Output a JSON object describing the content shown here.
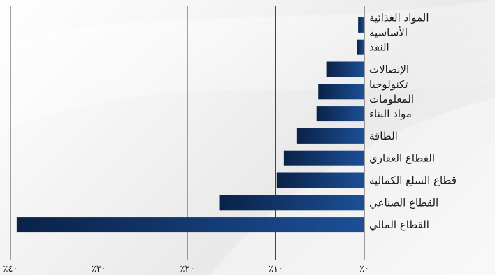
{
  "chart_data": {
    "type": "bar",
    "orientation": "horizontal",
    "categories": [
      [
        "المواد الغذائية",
        "الأساسية"
      ],
      [
        "النقد"
      ],
      [
        "الإتصالات"
      ],
      [
        "تكنولوجيا",
        "المعلومات"
      ],
      [
        "مواد البناء"
      ],
      [
        "الطاقة"
      ],
      [
        "القطاع العقاري"
      ],
      [
        "قطاع السلع الكمالية"
      ],
      [
        "القطاع الصناعي"
      ],
      [
        "القطاع المالي"
      ]
    ],
    "values": [
      0.7,
      0.8,
      4.3,
      5.2,
      5.4,
      7.6,
      9.1,
      9.9,
      16.4,
      39.3
    ],
    "xlim": [
      0,
      40
    ],
    "x_direction": "right-to-left",
    "xticks": [
      0,
      10,
      20,
      30,
      40
    ],
    "xtick_labels": [
      "٪٠",
      "٪١٠",
      "٪٢٠",
      "٪٣٠",
      "٪٤٠"
    ],
    "grid": "vertical",
    "colors": {
      "bar_dark": "#0a2247",
      "bar_light": "#1c4f96",
      "grid": "#444444",
      "text": "#1a1a1a"
    }
  }
}
